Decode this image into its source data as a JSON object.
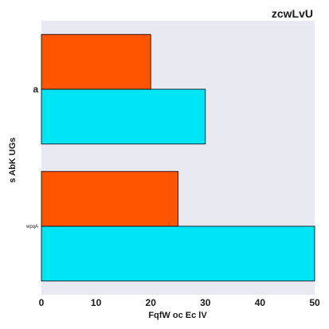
{
  "chart_data": {
    "type": "bar",
    "orientation": "horizontal",
    "title": "zcwLvU",
    "xlabel": "FqfW oc Ec lV",
    "ylabel": "s AbK UGs",
    "categories": [
      "wpqA",
      "a"
    ],
    "series": [
      {
        "values": [
          50,
          30
        ],
        "color": "#00e5f5"
      },
      {
        "values": [
          25,
          20
        ],
        "color": "#ff5500"
      }
    ],
    "xlim": [
      0,
      50
    ],
    "xticks": [
      0,
      10,
      20,
      30,
      40,
      50
    ],
    "grid": false,
    "background": "#e9e9f1"
  }
}
